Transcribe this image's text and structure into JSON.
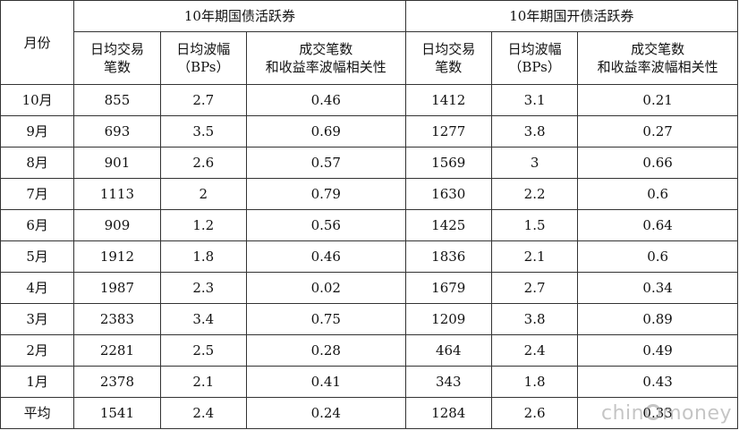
{
  "table": {
    "month_header": "月份",
    "groups": [
      "10年期国债活跃券",
      "10年期国开债活跃券"
    ],
    "sub_headers": [
      {
        "line1": "日均交易",
        "line2": "笔数"
      },
      {
        "line1": "日均波幅",
        "line2": "（BPs）"
      },
      {
        "line1": "成交笔数",
        "line2": "和收益率波幅相关性"
      },
      {
        "line1": "日均交易",
        "line2": "笔数"
      },
      {
        "line1": "日均波幅",
        "line2": "（BPs）"
      },
      {
        "line1": "成交笔数",
        "line2": "和收益率波幅相关性"
      }
    ],
    "rows": [
      [
        "10月",
        "855",
        "2.7",
        "0.46",
        "1412",
        "3.1",
        "0.21"
      ],
      [
        "9月",
        "693",
        "3.5",
        "0.69",
        "1277",
        "3.8",
        "0.27"
      ],
      [
        "8月",
        "901",
        "2.6",
        "0.57",
        "1569",
        "3",
        "0.66"
      ],
      [
        "7月",
        "1113",
        "2",
        "0.79",
        "1630",
        "2.2",
        "0.6"
      ],
      [
        "6月",
        "909",
        "1.2",
        "0.56",
        "1425",
        "1.5",
        "0.64"
      ],
      [
        "5月",
        "1912",
        "1.8",
        "0.46",
        "1836",
        "2.1",
        "0.6"
      ],
      [
        "4月",
        "1987",
        "2.3",
        "0.02",
        "1679",
        "2.7",
        "0.34"
      ],
      [
        "3月",
        "2383",
        "3.4",
        "0.75",
        "1209",
        "3.8",
        "0.89"
      ],
      [
        "2月",
        "2281",
        "2.5",
        "0.28",
        "464",
        "2.4",
        "0.49"
      ],
      [
        "1月",
        "2378",
        "2.1",
        "0.41",
        "343",
        "1.8",
        "0.43"
      ],
      [
        "平均",
        "1541",
        "2.4",
        "0.24",
        "1284",
        "2.6",
        "0.33"
      ]
    ]
  },
  "watermark": {
    "text_a": "chin",
    "text_b": "money"
  }
}
